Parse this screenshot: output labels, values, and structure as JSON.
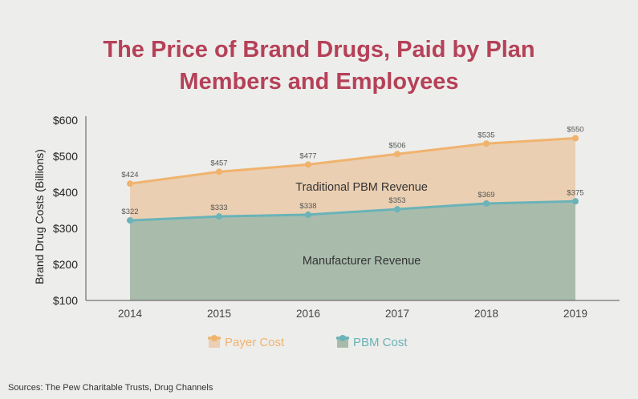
{
  "title": {
    "line1": "The Price of Brand Drugs, Paid by Plan",
    "line2": "Members and Employees"
  },
  "source": "Sources: The Pew Charitable Trusts, Drug Channels",
  "colors": {
    "title": "#b54158",
    "payer_line": "#f0b36e",
    "payer_fill": "#ebcfb2",
    "pbm_line": "#6ab3b8",
    "pbm_fill": "#a9bcac"
  },
  "chart_data": {
    "type": "area",
    "title": "The Price of Brand Drugs, Paid by Plan Members and Employees",
    "xlabel": "",
    "ylabel": "Brand Drug Costs (Billions)",
    "x": [
      "2014",
      "2015",
      "2016",
      "2017",
      "2018",
      "2019"
    ],
    "ylim": [
      100,
      600
    ],
    "yticks": [
      100,
      200,
      300,
      400,
      500,
      600
    ],
    "ytick_labels": [
      "$100",
      "$200",
      "$300",
      "$400",
      "$500",
      "$600"
    ],
    "grid": false,
    "legend_position": "bottom",
    "series": [
      {
        "name": "Payer Cost",
        "values": [
          424,
          457,
          477,
          506,
          535,
          550
        ],
        "labels": [
          "$424",
          "$457",
          "$477",
          "$506",
          "$535",
          "$550"
        ]
      },
      {
        "name": "PBM Cost",
        "values": [
          322,
          333,
          338,
          353,
          369,
          375
        ],
        "labels": [
          "$322",
          "$333",
          "$338",
          "$353",
          "$369",
          "$375"
        ]
      }
    ],
    "annotations": [
      {
        "text": "Traditional PBM Revenue",
        "x": "2016.6",
        "y": 416
      },
      {
        "text": "Manufacturer Revenue",
        "x": "2016.6",
        "y": 211
      }
    ]
  }
}
